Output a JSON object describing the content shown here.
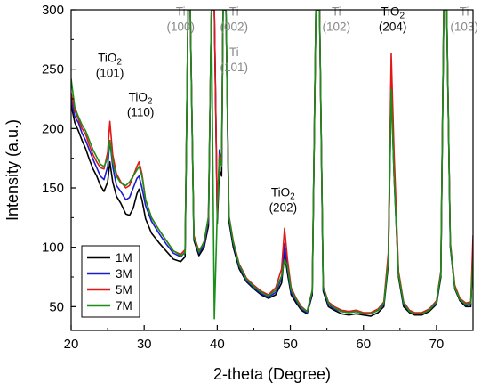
{
  "chart_data": {
    "type": "line",
    "title": "",
    "xlabel": "2-theta (Degree)",
    "ylabel": "Intensity (a.u.)",
    "xlim": [
      20,
      75
    ],
    "ylim": [
      30,
      300
    ],
    "x_ticks": [
      20,
      30,
      40,
      50,
      60,
      70
    ],
    "y_ticks": [
      50,
      100,
      150,
      200,
      250,
      300
    ],
    "grid": false,
    "legend_position": "bottom-left",
    "annotation_colors": {
      "ti": "#888888",
      "tio2": "#000000"
    },
    "annotations": [
      {
        "phase": "TiO",
        "sub": "2",
        "hkl": "(101)",
        "x": 25.3,
        "y": 256,
        "kind": "tio2"
      },
      {
        "phase": "TiO",
        "sub": "2",
        "hkl": "(110)",
        "x": 29.5,
        "y": 223,
        "kind": "tio2"
      },
      {
        "phase": "Ti",
        "sub": "",
        "hkl": "(100)",
        "x": 35.0,
        "y": 295,
        "kind": "ti"
      },
      {
        "phase": "Ti",
        "sub": "",
        "hkl": "(002)",
        "x": 42.3,
        "y": 295,
        "kind": "ti"
      },
      {
        "phase": "Ti",
        "sub": "",
        "hkl": "(101)",
        "x": 42.3,
        "y": 261,
        "kind": "ti"
      },
      {
        "phase": "TiO",
        "sub": "2",
        "hkl": "(202)",
        "x": 49.0,
        "y": 143,
        "kind": "tio2"
      },
      {
        "phase": "Ti",
        "sub": "",
        "hkl": "(102)",
        "x": 56.3,
        "y": 295,
        "kind": "ti"
      },
      {
        "phase": "TiO",
        "sub": "2",
        "hkl": "(204)",
        "x": 64.0,
        "y": 295,
        "kind": "tio2"
      },
      {
        "phase": "Ti",
        "sub": "",
        "hkl": "(103)",
        "x": 73.8,
        "y": 295,
        "kind": "ti"
      }
    ],
    "series": [
      {
        "name": "1M",
        "color": "#000000",
        "x": [
          20,
          20.5,
          21,
          21.5,
          22,
          22.5,
          23,
          23.5,
          24,
          24.5,
          25,
          25.3,
          25.7,
          26.2,
          26.8,
          27.5,
          28,
          28.5,
          29,
          29.3,
          29.7,
          30.2,
          31,
          32,
          33,
          34,
          35,
          35.6,
          36.0,
          36.3,
          36.8,
          37.5,
          38.2,
          38.8,
          39.2,
          39.6,
          40.0,
          40.3,
          40.6,
          40.8,
          41.2,
          41.6,
          42.2,
          43,
          44,
          45,
          46,
          47,
          48,
          48.8,
          49.2,
          49.6,
          50.1,
          50.8,
          51.5,
          52.3,
          53.0,
          53.5,
          54.0,
          54.5,
          55.2,
          56,
          57,
          58,
          59,
          60,
          61,
          62,
          62.8,
          63.4,
          63.8,
          64.2,
          64.8,
          65.5,
          66.3,
          67,
          68,
          69,
          70,
          70.6,
          71.0,
          71.4,
          71.9,
          72.5,
          73.2,
          74,
          74.7,
          75
        ],
        "y": [
          220,
          205,
          198,
          190,
          183,
          174,
          166,
          160,
          152,
          147,
          155,
          172,
          155,
          143,
          137,
          128,
          127,
          133,
          145,
          149,
          140,
          124,
          112,
          104,
          97,
          90,
          88,
          92,
          300,
          300,
          106,
          93,
          100,
          118,
          300,
          300,
          120,
          165,
          160,
          300,
          300,
          122,
          100,
          82,
          71,
          65,
          60,
          57,
          60,
          70,
          95,
          78,
          60,
          53,
          47,
          44,
          60,
          300,
          300,
          63,
          50,
          47,
          44,
          43,
          44,
          43,
          42,
          45,
          50,
          85,
          235,
          160,
          75,
          50,
          45,
          43,
          43,
          46,
          52,
          75,
          300,
          300,
          100,
          65,
          55,
          50,
          50,
          95
        ]
      },
      {
        "name": "3M",
        "color": "#1c1ccc",
        "x": [
          20,
          20.5,
          21,
          21.5,
          22,
          22.5,
          23,
          23.5,
          24,
          24.5,
          25,
          25.3,
          25.7,
          26.2,
          26.8,
          27.5,
          28,
          28.5,
          29,
          29.3,
          29.7,
          30.2,
          31,
          32,
          33,
          34,
          35,
          35.6,
          36.0,
          36.3,
          36.8,
          37.5,
          38.2,
          38.8,
          39.2,
          39.6,
          40.0,
          40.3,
          40.6,
          40.8,
          41.2,
          41.6,
          42.2,
          43,
          44,
          45,
          46,
          47,
          48,
          48.8,
          49.2,
          49.6,
          50.1,
          50.8,
          51.5,
          52.3,
          53.0,
          53.5,
          54.0,
          54.5,
          55.2,
          56,
          57,
          58,
          59,
          60,
          61,
          62,
          62.8,
          63.4,
          63.8,
          64.2,
          64.8,
          65.5,
          66.3,
          67,
          68,
          69,
          70,
          70.6,
          71.0,
          71.4,
          71.9,
          72.5,
          73.2,
          74,
          74.7,
          75
        ],
        "y": [
          225,
          210,
          205,
          196,
          190,
          182,
          174,
          167,
          160,
          157,
          168,
          190,
          168,
          152,
          147,
          140,
          142,
          150,
          158,
          160,
          150,
          135,
          122,
          112,
          103,
          95,
          92,
          96,
          300,
          300,
          108,
          95,
          102,
          122,
          300,
          300,
          125,
          182,
          170,
          300,
          300,
          125,
          103,
          84,
          72,
          66,
          61,
          58,
          62,
          74,
          103,
          82,
          62,
          55,
          48,
          45,
          62,
          300,
          300,
          65,
          52,
          48,
          46,
          45,
          46,
          44,
          44,
          47,
          52,
          90,
          245,
          165,
          78,
          52,
          46,
          44,
          44,
          47,
          53,
          78,
          300,
          300,
          102,
          66,
          56,
          51,
          52,
          98
        ]
      },
      {
        "name": "5M",
        "color": "#e01818",
        "x": [
          20,
          20.5,
          21,
          21.5,
          22,
          22.5,
          23,
          23.5,
          24,
          24.5,
          25,
          25.3,
          25.7,
          26.2,
          26.8,
          27.5,
          28,
          28.5,
          29,
          29.3,
          29.7,
          30.2,
          31,
          32,
          33,
          34,
          35,
          35.6,
          36.0,
          36.3,
          36.8,
          37.5,
          38.2,
          38.8,
          39.2,
          39.6,
          40.0,
          40.3,
          40.6,
          40.8,
          41.2,
          41.6,
          42.2,
          43,
          44,
          45,
          46,
          47,
          48,
          48.8,
          49.2,
          49.6,
          50.1,
          50.8,
          51.5,
          52.3,
          53.0,
          53.5,
          54.0,
          54.5,
          55.2,
          56,
          57,
          58,
          59,
          60,
          61,
          62,
          62.8,
          63.4,
          63.8,
          64.2,
          64.8,
          65.5,
          66.3,
          67,
          68,
          69,
          70,
          70.6,
          71.0,
          71.4,
          71.9,
          72.5,
          73.2,
          74,
          74.7,
          75
        ],
        "y": [
          230,
          215,
          208,
          200,
          195,
          186,
          178,
          172,
          167,
          166,
          180,
          206,
          178,
          162,
          155,
          150,
          152,
          160,
          168,
          172,
          162,
          140,
          125,
          115,
          106,
          97,
          94,
          98,
          300,
          300,
          110,
          97,
          104,
          125,
          300,
          300,
          128,
          178,
          172,
          300,
          300,
          127,
          105,
          86,
          74,
          68,
          63,
          60,
          66,
          82,
          116,
          90,
          66,
          57,
          50,
          46,
          64,
          300,
          300,
          67,
          54,
          50,
          47,
          46,
          47,
          45,
          45,
          48,
          54,
          95,
          263,
          180,
          80,
          54,
          47,
          45,
          45,
          48,
          55,
          80,
          300,
          300,
          104,
          68,
          57,
          53,
          54,
          110
        ]
      },
      {
        "name": "7M",
        "color": "#1a8f1a",
        "x": [
          20,
          20.5,
          21,
          21.5,
          22,
          22.5,
          23,
          23.5,
          24,
          24.5,
          25,
          25.3,
          25.7,
          26.2,
          26.8,
          27.5,
          28,
          28.5,
          29,
          29.3,
          29.7,
          30.2,
          31,
          32,
          33,
          34,
          35,
          35.6,
          36.0,
          36.3,
          36.8,
          37.5,
          38.2,
          38.8,
          39.2,
          39.6,
          40.0,
          40.3,
          40.6,
          40.8,
          41.2,
          41.6,
          42.2,
          43,
          44,
          45,
          46,
          47,
          48,
          48.8,
          49.2,
          49.6,
          50.1,
          50.8,
          51.5,
          52.3,
          53.0,
          53.5,
          54.0,
          54.5,
          55.2,
          56,
          57,
          58,
          59,
          60,
          61,
          62,
          62.8,
          63.4,
          63.8,
          64.2,
          64.8,
          65.5,
          66.3,
          67,
          68,
          69,
          70,
          70.6,
          71.0,
          71.4,
          71.9,
          72.5,
          73.2,
          74,
          74.7,
          75
        ],
        "y": [
          242,
          218,
          210,
          203,
          198,
          190,
          182,
          176,
          170,
          168,
          175,
          190,
          172,
          160,
          154,
          152,
          155,
          160,
          165,
          168,
          160,
          140,
          125,
          115,
          106,
          97,
          93,
          95,
          300,
          300,
          108,
          96,
          105,
          126,
          300,
          40,
          130,
          175,
          168,
          300,
          300,
          126,
          104,
          85,
          73,
          67,
          62,
          59,
          64,
          76,
          90,
          84,
          64,
          56,
          49,
          46,
          63,
          300,
          300,
          66,
          53,
          49,
          46,
          45,
          46,
          44,
          44,
          47,
          53,
          88,
          233,
          160,
          77,
          53,
          46,
          44,
          44,
          47,
          54,
          78,
          300,
          300,
          102,
          66,
          56,
          52,
          53,
          90
        ]
      }
    ]
  }
}
